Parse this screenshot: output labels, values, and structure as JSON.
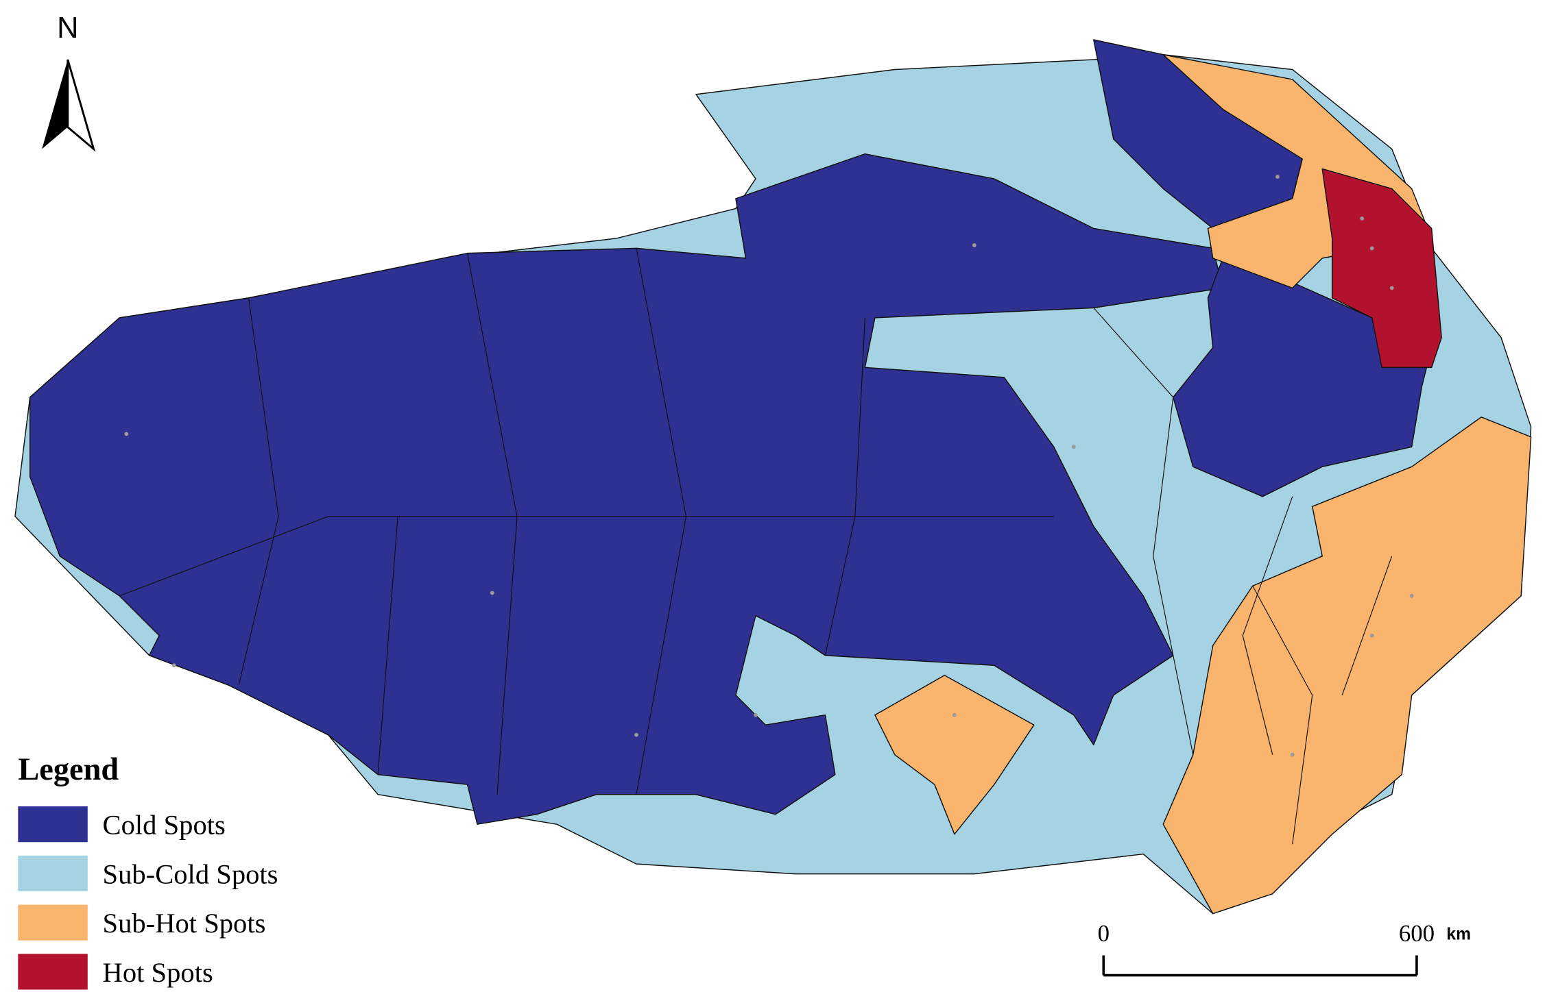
{
  "north_label": "N",
  "legend": {
    "title": "Legend",
    "items": [
      {
        "label": "Cold Spots",
        "color": "#2e3192"
      },
      {
        "label": "Sub-Cold Spots",
        "color": "#a6d3e3"
      },
      {
        "label": "Sub-Hot Spots",
        "color": "#f9b56e"
      },
      {
        "label": "Hot Spots",
        "color": "#b3122e"
      }
    ]
  },
  "scale_bar": {
    "start": 0,
    "end": 600,
    "unit": "km"
  }
}
